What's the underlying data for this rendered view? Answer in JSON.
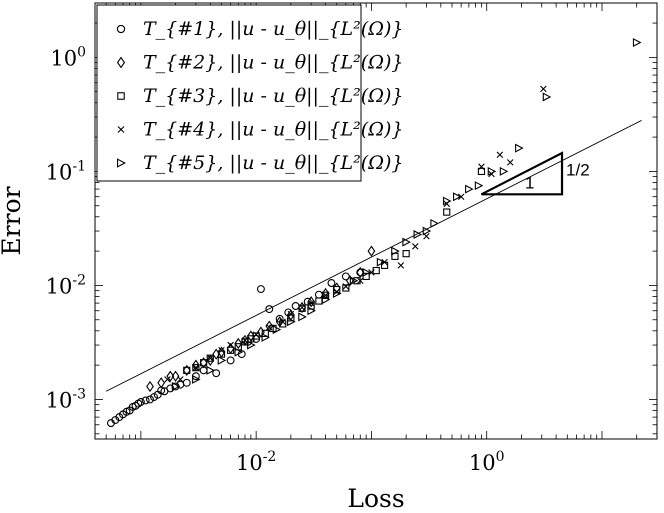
{
  "chart_data": {
    "type": "scatter",
    "xscale": "log",
    "yscale": "log",
    "xlim": [
      0.0004,
      30
    ],
    "ylim": [
      0.00045,
      3
    ],
    "xlabel": "Loss",
    "ylabel": "Error",
    "x_ticks": [
      {
        "value": 0.01,
        "label": "10^-2"
      },
      {
        "value": 1,
        "label": "10^0"
      }
    ],
    "y_ticks": [
      {
        "value": 0.001,
        "label": "10^-3"
      },
      {
        "value": 0.01,
        "label": "10^-2"
      },
      {
        "value": 0.1,
        "label": "10^-1"
      },
      {
        "value": 1,
        "label": "10^0"
      }
    ],
    "grid": false,
    "legend_position": "top-left",
    "reference_line": {
      "x": [
        0.0005,
        22
      ],
      "y": [
        0.00118,
        0.28
      ],
      "slope": 0.5
    },
    "slope_triangle": {
      "x": [
        0.9,
        4.5
      ],
      "y": [
        0.063,
        0.145
      ],
      "run_label": "1",
      "rise_label": "1/2"
    },
    "series": [
      {
        "name": "T_{#1}, ||u - u_θ||_{L²(Ω)}",
        "marker": "circle",
        "x": [
          0.00055,
          0.0006,
          0.00065,
          0.0007,
          0.00075,
          0.0008,
          0.00085,
          0.0009,
          0.00095,
          0.001,
          0.0011,
          0.0012,
          0.0013,
          0.0014,
          0.0015,
          0.0016,
          0.0018,
          0.002,
          0.0022,
          0.0025,
          0.003,
          0.0035,
          0.0045,
          0.006,
          0.0075,
          0.0085,
          0.01,
          0.011,
          0.013,
          0.016,
          0.019,
          0.022,
          0.028,
          0.035,
          0.045,
          0.06,
          0.08
        ],
        "y": [
          0.00062,
          0.00066,
          0.0007,
          0.00074,
          0.00078,
          0.0008,
          0.00086,
          0.00088,
          0.00092,
          0.00095,
          0.00098,
          0.001,
          0.00105,
          0.0011,
          0.0012,
          0.00118,
          0.00125,
          0.0013,
          0.00135,
          0.0014,
          0.0016,
          0.0018,
          0.0017,
          0.0022,
          0.0025,
          0.0032,
          0.0034,
          0.0093,
          0.0062,
          0.0051,
          0.0058,
          0.0066,
          0.0072,
          0.0083,
          0.0105,
          0.012,
          0.013
        ]
      },
      {
        "name": "T_{#2}, ||u - u_θ||_{L²(Ω)}",
        "marker": "diamond",
        "x": [
          0.0012,
          0.0015,
          0.0018,
          0.002,
          0.0025,
          0.003,
          0.0035,
          0.004,
          0.0045,
          0.005,
          0.006,
          0.007,
          0.008,
          0.009,
          0.011,
          0.013,
          0.016,
          0.02,
          0.025,
          0.03,
          0.04,
          0.05,
          0.065,
          0.08,
          0.1
        ],
        "y": [
          0.0013,
          0.0014,
          0.0016,
          0.0016,
          0.0018,
          0.002,
          0.0021,
          0.0022,
          0.0025,
          0.0026,
          0.0028,
          0.0031,
          0.0033,
          0.0036,
          0.0039,
          0.0044,
          0.0048,
          0.0055,
          0.0064,
          0.0072,
          0.0085,
          0.0095,
          0.011,
          0.013,
          0.02
        ]
      },
      {
        "name": "T_{#3}, ||u - u_θ||_{L²(Ω)}",
        "marker": "square",
        "x": [
          0.0025,
          0.003,
          0.0035,
          0.004,
          0.005,
          0.006,
          0.007,
          0.008,
          0.009,
          0.01,
          0.012,
          0.014,
          0.017,
          0.02,
          0.025,
          0.03,
          0.035,
          0.04,
          0.05,
          0.06,
          0.075,
          0.09,
          0.11,
          0.13,
          0.16,
          0.2,
          0.45,
          0.9
        ],
        "y": [
          0.0018,
          0.0019,
          0.0021,
          0.0023,
          0.0025,
          0.0027,
          0.0029,
          0.0032,
          0.0034,
          0.0036,
          0.0038,
          0.0042,
          0.0046,
          0.0052,
          0.0063,
          0.0066,
          0.0073,
          0.0082,
          0.0092,
          0.0095,
          0.011,
          0.012,
          0.0135,
          0.015,
          0.018,
          0.019,
          0.044,
          0.1
        ]
      },
      {
        "name": "T_{#4}, ||u - u_θ||_{L²(Ω)}",
        "marker": "x",
        "x": [
          0.0017,
          0.0022,
          0.003,
          0.004,
          0.005,
          0.006,
          0.008,
          0.01,
          0.013,
          0.017,
          0.02,
          0.025,
          0.03,
          0.04,
          0.05,
          0.06,
          0.08,
          0.1,
          0.13,
          0.18,
          0.24,
          0.3,
          0.45,
          0.6,
          0.9,
          1.1,
          1.3,
          1.6,
          3.1
        ],
        "y": [
          0.0015,
          0.0015,
          0.0019,
          0.0023,
          0.0027,
          0.003,
          0.0033,
          0.0037,
          0.0043,
          0.0048,
          0.0056,
          0.0064,
          0.007,
          0.0082,
          0.0088,
          0.0098,
          0.011,
          0.013,
          0.016,
          0.015,
          0.022,
          0.027,
          0.052,
          0.06,
          0.11,
          0.095,
          0.14,
          0.12,
          0.53
        ]
      },
      {
        "name": "T_{#5}, ||u - u_θ||_{L²(Ω)}",
        "marker": "triangle-right",
        "x": [
          0.002,
          0.003,
          0.004,
          0.005,
          0.007,
          0.009,
          0.012,
          0.015,
          0.02,
          0.025,
          0.03,
          0.04,
          0.05,
          0.07,
          0.09,
          0.12,
          0.16,
          0.2,
          0.25,
          0.3,
          0.35,
          0.45,
          0.55,
          0.7,
          0.85,
          1.1,
          1.4,
          1.9,
          3.3,
          20
        ],
        "y": [
          0.0013,
          0.0015,
          0.0018,
          0.0022,
          0.0026,
          0.003,
          0.0035,
          0.0041,
          0.0048,
          0.0053,
          0.006,
          0.0075,
          0.0085,
          0.011,
          0.013,
          0.016,
          0.02,
          0.024,
          0.028,
          0.03,
          0.035,
          0.055,
          0.06,
          0.07,
          0.075,
          0.1,
          0.1,
          0.16,
          0.45,
          1.35
        ]
      }
    ]
  }
}
